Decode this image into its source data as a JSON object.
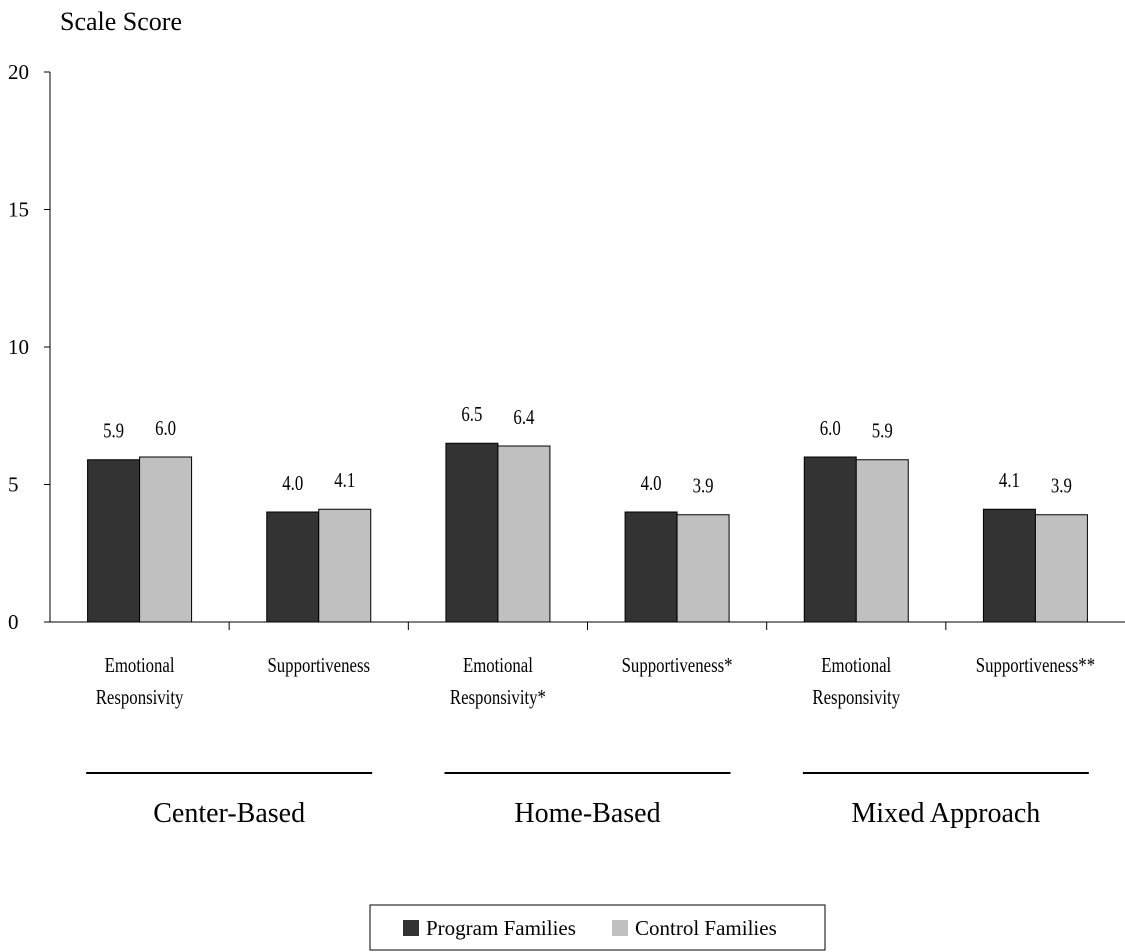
{
  "chart_data": {
    "type": "bar",
    "ylabel": "Scale Score",
    "ylim": [
      0,
      20
    ],
    "yticks": [
      0,
      5,
      10,
      15,
      20
    ],
    "categories": [
      [
        "Emotional",
        "Responsivity"
      ],
      [
        "Supportiveness"
      ],
      [
        "Emotional",
        "Responsivity*"
      ],
      [
        "Supportiveness*"
      ],
      [
        "Emotional",
        "Responsivity"
      ],
      [
        "Supportiveness**"
      ]
    ],
    "groups": [
      "Center-Based",
      "Home-Based",
      "Mixed Approach"
    ],
    "series": [
      {
        "name": "Program Families",
        "color": "#333333",
        "values": [
          5.9,
          4.0,
          6.5,
          4.0,
          6.0,
          4.1
        ],
        "labels": [
          "5.9",
          "4.0",
          "6.5",
          "4.0",
          "6.0",
          "4.1"
        ]
      },
      {
        "name": "Control Families",
        "color": "#c0c0c0",
        "values": [
          6.0,
          4.1,
          6.4,
          3.9,
          5.9,
          3.9
        ],
        "labels": [
          "6.0",
          "4.1",
          "6.4",
          "3.9",
          "5.9",
          "3.9"
        ]
      }
    ],
    "legend": "bottom-center",
    "grid": false
  }
}
